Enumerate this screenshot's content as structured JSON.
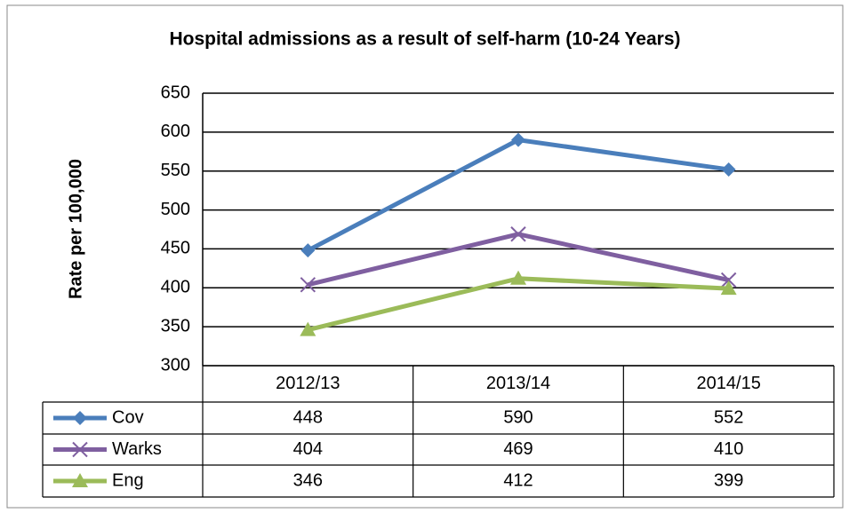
{
  "chart_data": {
    "type": "line",
    "title": "Hospital admissions as a result of self-harm (10-24 Years)",
    "y_label": "Rate per 100,000",
    "categories": [
      "2012/13",
      "2013/14",
      "2014/15"
    ],
    "series": [
      {
        "name": "Cov",
        "color": "#4a7ebb",
        "marker": "diamond",
        "values": [
          448,
          590,
          552
        ]
      },
      {
        "name": "Warks",
        "color": "#7f5fa0",
        "marker": "x",
        "values": [
          404,
          469,
          410
        ]
      },
      {
        "name": "Eng",
        "color": "#9bbb59",
        "marker": "triangle",
        "values": [
          346,
          412,
          399
        ]
      }
    ],
    "ylim": [
      300,
      650
    ],
    "yticks": [
      300,
      350,
      400,
      450,
      500,
      550,
      600,
      650
    ],
    "grid": true,
    "data_table": true
  }
}
